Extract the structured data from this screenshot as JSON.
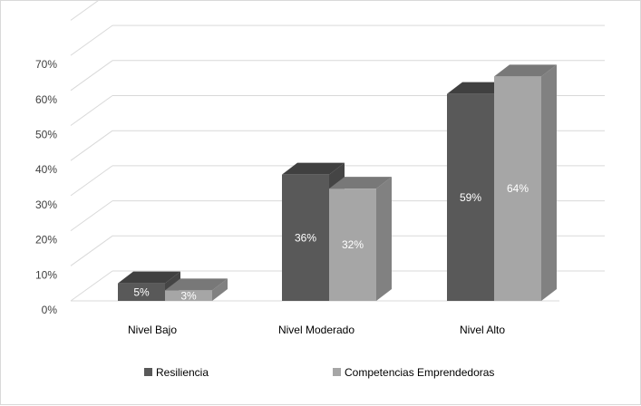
{
  "chart_data": {
    "type": "bar",
    "title": "",
    "xlabel": "",
    "ylabel": "",
    "categories": [
      "Nivel Bajo",
      "Nivel Moderado",
      "Nivel Alto"
    ],
    "series": [
      {
        "name": "Resiliencia",
        "values": [
          5,
          36,
          59
        ],
        "labels": [
          "5%",
          "36%",
          "59%"
        ],
        "color": "#595959"
      },
      {
        "name": "Competencias Emprendedoras",
        "values": [
          3,
          32,
          64
        ],
        "labels": [
          "3%",
          "32%",
          "64%"
        ],
        "color": "#a6a6a6"
      }
    ],
    "y_ticks": [
      "0%",
      "10%",
      "20%",
      "30%",
      "40%",
      "50%",
      "60%",
      "70%"
    ],
    "ylim": [
      0,
      80
    ],
    "grid": true,
    "three_d": true,
    "legend_position": "bottom"
  }
}
